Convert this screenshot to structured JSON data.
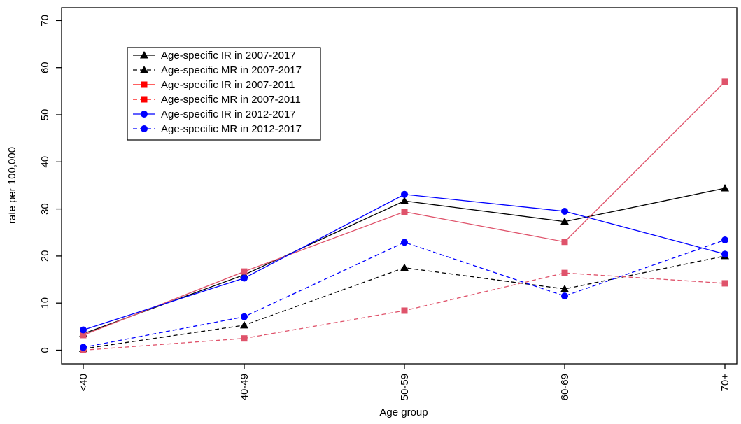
{
  "chart_data": {
    "type": "line",
    "title": "",
    "xlabel": "Age group",
    "ylabel": "rate per 100,000",
    "categories": [
      "<40",
      "40-49",
      "50-59",
      "60-69",
      "70+"
    ],
    "ylim": [
      0,
      70
    ],
    "yticks": [
      0,
      10,
      20,
      30,
      40,
      50,
      60,
      70
    ],
    "grid": false,
    "legend_position": "top-left",
    "series": [
      {
        "name": "Age-specific IR in 2007-2017",
        "values": [
          3.5,
          16.0,
          31.7,
          27.3,
          34.4
        ],
        "color": "#000000",
        "dash": "solid",
        "marker": "triangle"
      },
      {
        "name": "Age-specific MR in 2007-2017",
        "values": [
          0.3,
          5.3,
          17.5,
          13.0,
          20.0
        ],
        "color": "#000000",
        "dash": "dashed",
        "marker": "triangle"
      },
      {
        "name": "Age-specific IR in 2007-2011",
        "values": [
          3.2,
          16.7,
          29.4,
          23.0,
          57.0
        ],
        "color": "#df536b",
        "legend_color": "#ff0000",
        "dash": "solid",
        "marker": "square"
      },
      {
        "name": "Age-specific MR in 2007-2011",
        "values": [
          0.0,
          2.5,
          8.4,
          16.4,
          14.2
        ],
        "color": "#df536b",
        "legend_color": "#ff0000",
        "dash": "dashed",
        "marker": "square"
      },
      {
        "name": "Age-specific IR in 2012-2017",
        "values": [
          4.3,
          15.3,
          33.1,
          29.5,
          20.4
        ],
        "color": "#0000ff",
        "dash": "solid",
        "marker": "circle"
      },
      {
        "name": "Age-specific MR in 2012-2017",
        "values": [
          0.6,
          7.1,
          22.9,
          11.5,
          23.4
        ],
        "color": "#0000ff",
        "dash": "dashed",
        "marker": "circle"
      }
    ]
  }
}
